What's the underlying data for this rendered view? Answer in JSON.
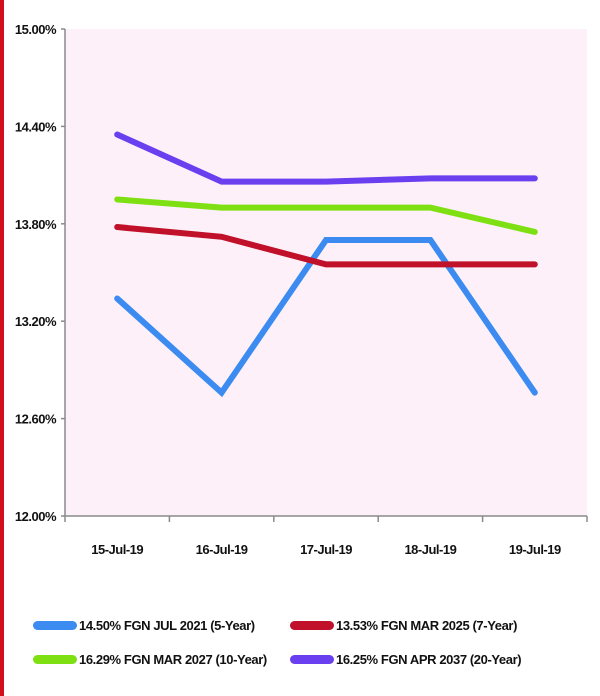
{
  "chart_data": {
    "type": "line",
    "title": "",
    "xlabel": "",
    "ylabel": "",
    "categories": [
      "15-Jul-19",
      "16-Jul-19",
      "17-Jul-19",
      "18-Jul-19",
      "19-Jul-19"
    ],
    "y_ticks": [
      "12.00%",
      "12.60%",
      "13.20%",
      "13.80%",
      "14.40%",
      "15.00%"
    ],
    "ylim": [
      12.0,
      15.0
    ],
    "grid": false,
    "plot_background": "#fdf0f8",
    "legend_position": "bottom",
    "series": [
      {
        "name": "14.50% FGN JUL 2021 (5-Year)",
        "color": "#3b8bf0",
        "values": [
          13.34,
          12.76,
          13.7,
          13.7,
          12.76
        ]
      },
      {
        "name": "13.53% FGN MAR 2025 (7-Year)",
        "color": "#c0102a",
        "values": [
          13.78,
          13.72,
          13.55,
          13.55,
          13.55
        ]
      },
      {
        "name": "16.29% FGN MAR 2027 (10-Year)",
        "color": "#7ee012",
        "values": [
          13.95,
          13.9,
          13.9,
          13.9,
          13.75
        ]
      },
      {
        "name": "16.25% FGN APR 2037 (20-Year)",
        "color": "#6a3ff0",
        "values": [
          14.35,
          14.06,
          14.06,
          14.08,
          14.08
        ]
      }
    ]
  },
  "legend": {
    "items": [
      {
        "label": "14.50% FGN JUL 2021 (5-Year)",
        "color": "#3b8bf0"
      },
      {
        "label": "13.53% FGN MAR 2025 (7-Year)",
        "color": "#c0102a"
      },
      {
        "label": "16.29% FGN MAR 2027 (10-Year)",
        "color": "#7ee012"
      },
      {
        "label": "16.25% FGN APR 2037 (20-Year)",
        "color": "#6a3ff0"
      }
    ]
  }
}
